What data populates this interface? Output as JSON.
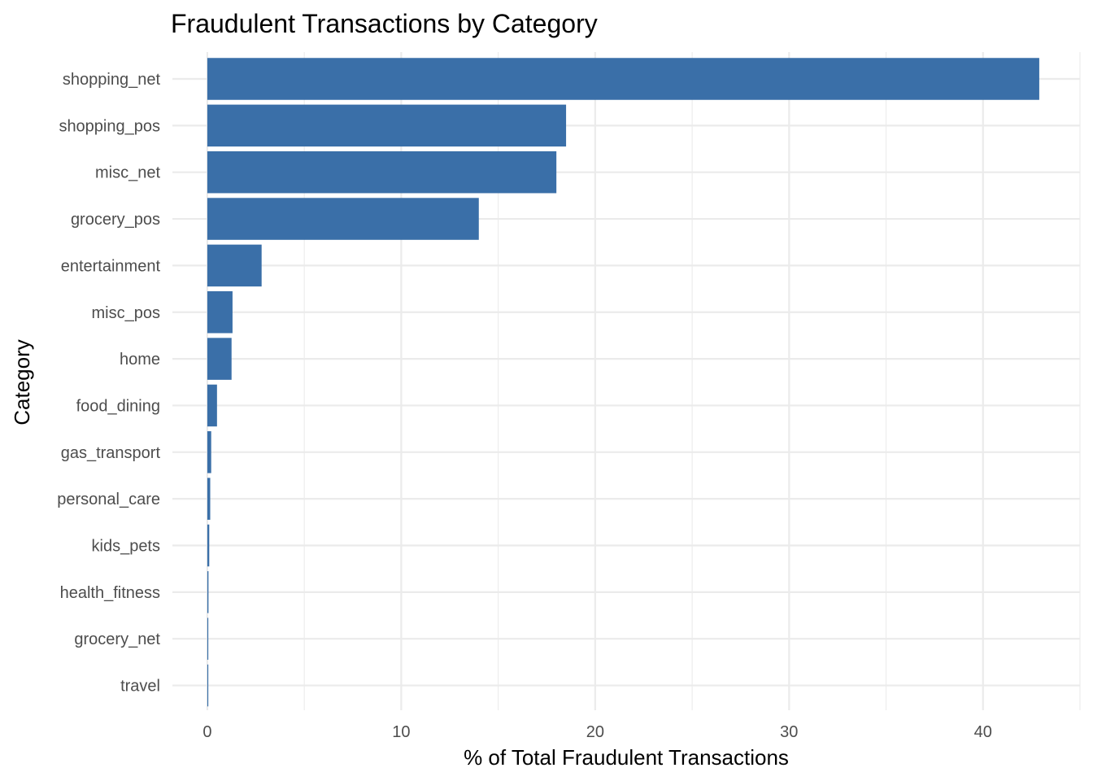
{
  "chart_data": {
    "type": "bar",
    "orientation": "horizontal",
    "title": "Fraudulent Transactions by Category",
    "xlabel": "% of Total Fraudulent Transactions",
    "ylabel": "Category",
    "categories": [
      "shopping_net",
      "shopping_pos",
      "misc_net",
      "grocery_pos",
      "entertainment",
      "misc_pos",
      "home",
      "food_dining",
      "gas_transport",
      "personal_care",
      "kids_pets",
      "health_fitness",
      "grocery_net",
      "travel"
    ],
    "values": [
      42.9,
      18.5,
      18.0,
      14.0,
      2.8,
      1.3,
      1.25,
      0.5,
      0.2,
      0.15,
      0.1,
      0.06,
      0.05,
      0.04
    ],
    "x_ticks": [
      0,
      10,
      20,
      30,
      40
    ],
    "xlim": [
      -1.8,
      45.0
    ],
    "grid": true,
    "legend": "none",
    "bar_color": "#3a6fa8"
  }
}
